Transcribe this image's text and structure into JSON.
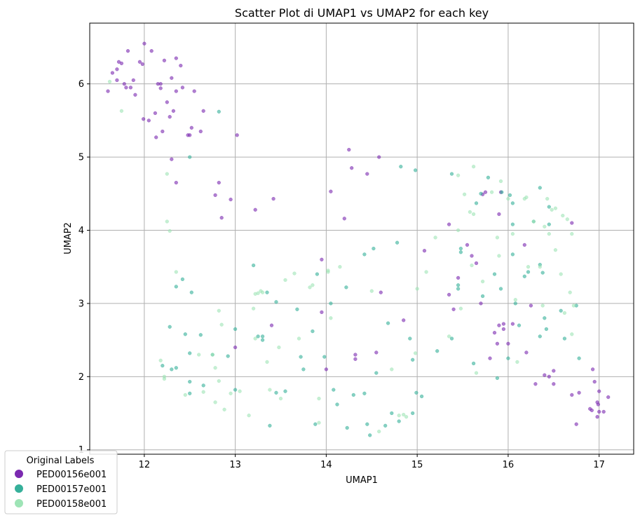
{
  "chart_data": {
    "type": "scatter",
    "title": "Scatter Plot di UMAP1 vs UMAP2 for each key",
    "xlabel": "UMAP1",
    "ylabel": "UMAP2",
    "xlim": [
      11.4,
      17.38
    ],
    "ylim": [
      0.94,
      6.83
    ],
    "xticks": [
      12,
      13,
      14,
      15,
      16,
      17
    ],
    "yticks": [
      1,
      2,
      3,
      4,
      5,
      6
    ],
    "grid": true,
    "legend": {
      "title": "Original Labels",
      "placement": "lower-left"
    },
    "series": [
      {
        "name": "PED00156e001",
        "color": "#7b2ab0",
        "points": [
          [
            11.6,
            5.9
          ],
          [
            11.65,
            6.15
          ],
          [
            11.7,
            6.2
          ],
          [
            11.72,
            6.3
          ],
          [
            11.75,
            6.28
          ],
          [
            11.7,
            6.05
          ],
          [
            11.78,
            6.0
          ],
          [
            11.8,
            5.95
          ],
          [
            11.85,
            5.95
          ],
          [
            11.82,
            6.45
          ],
          [
            11.88,
            6.05
          ],
          [
            11.9,
            5.85
          ],
          [
            11.95,
            6.3
          ],
          [
            11.98,
            6.27
          ],
          [
            11.99,
            5.52
          ],
          [
            12.0,
            6.55
          ],
          [
            12.05,
            5.5
          ],
          [
            12.08,
            6.45
          ],
          [
            12.12,
            5.6
          ],
          [
            12.15,
            6.0
          ],
          [
            12.18,
            6.0
          ],
          [
            12.2,
            5.35
          ],
          [
            12.22,
            6.32
          ],
          [
            12.25,
            5.75
          ],
          [
            12.28,
            5.55
          ],
          [
            12.3,
            6.08
          ],
          [
            12.32,
            5.63
          ],
          [
            12.35,
            6.35
          ],
          [
            12.35,
            5.9
          ],
          [
            12.4,
            6.25
          ],
          [
            12.42,
            5.95
          ],
          [
            12.48,
            5.3
          ],
          [
            12.5,
            5.3
          ],
          [
            12.52,
            5.4
          ],
          [
            12.55,
            5.9
          ],
          [
            12.62,
            5.35
          ],
          [
            12.65,
            5.63
          ],
          [
            12.13,
            5.27
          ],
          [
            12.18,
            5.94
          ],
          [
            12.3,
            4.97
          ],
          [
            12.35,
            4.65
          ],
          [
            12.78,
            4.48
          ],
          [
            12.82,
            4.65
          ],
          [
            12.85,
            4.17
          ],
          [
            12.95,
            4.42
          ],
          [
            13.02,
            5.3
          ],
          [
            13.22,
            4.28
          ],
          [
            13.42,
            4.43
          ],
          [
            14.05,
            4.53
          ],
          [
            14.2,
            4.16
          ],
          [
            14.25,
            5.1
          ],
          [
            14.28,
            4.85
          ],
          [
            14.45,
            4.77
          ],
          [
            14.58,
            5.0
          ],
          [
            13.95,
            3.6
          ],
          [
            14.55,
            2.33
          ],
          [
            14.6,
            3.15
          ],
          [
            14.85,
            2.77
          ],
          [
            14.32,
            2.3
          ],
          [
            14.32,
            2.24
          ],
          [
            13.95,
            2.88
          ],
          [
            13.4,
            2.7
          ],
          [
            13.0,
            2.4
          ],
          [
            14.0,
            2.1
          ],
          [
            15.08,
            3.72
          ],
          [
            15.35,
            4.08
          ],
          [
            15.35,
            3.12
          ],
          [
            15.4,
            2.92
          ],
          [
            15.45,
            3.35
          ],
          [
            15.55,
            3.8
          ],
          [
            15.6,
            3.65
          ],
          [
            15.65,
            3.55
          ],
          [
            15.7,
            3.0
          ],
          [
            15.72,
            4.49
          ],
          [
            15.75,
            4.52
          ],
          [
            15.8,
            2.25
          ],
          [
            15.85,
            2.6
          ],
          [
            15.88,
            2.45
          ],
          [
            15.9,
            4.22
          ],
          [
            15.9,
            2.7
          ],
          [
            15.92,
            4.52
          ],
          [
            15.95,
            2.72
          ],
          [
            15.95,
            2.65
          ],
          [
            16.0,
            2.45
          ],
          [
            16.05,
            2.72
          ],
          [
            16.18,
            3.8
          ],
          [
            16.2,
            2.33
          ],
          [
            16.25,
            2.97
          ],
          [
            16.3,
            1.9
          ],
          [
            16.4,
            2.02
          ],
          [
            16.45,
            2.0
          ],
          [
            16.5,
            2.08
          ],
          [
            16.5,
            1.9
          ],
          [
            16.7,
            1.75
          ],
          [
            16.75,
            1.35
          ],
          [
            16.78,
            1.78
          ],
          [
            16.9,
            1.56
          ],
          [
            16.92,
            1.54
          ],
          [
            16.93,
            2.1
          ],
          [
            16.95,
            1.93
          ],
          [
            16.98,
            1.45
          ],
          [
            16.98,
            1.65
          ],
          [
            16.99,
            1.62
          ],
          [
            17.0,
            1.52
          ],
          [
            17.0,
            1.8
          ],
          [
            17.05,
            1.52
          ],
          [
            17.1,
            1.72
          ],
          [
            16.7,
            4.1
          ]
        ]
      },
      {
        "name": "PED00157e001",
        "color": "#36b09a",
        "points": [
          [
            12.5,
            5.0
          ],
          [
            12.82,
            5.62
          ],
          [
            12.28,
            2.68
          ],
          [
            12.35,
            3.23
          ],
          [
            12.42,
            3.33
          ],
          [
            12.52,
            3.15
          ],
          [
            12.2,
            2.15
          ],
          [
            12.3,
            2.1
          ],
          [
            12.35,
            2.12
          ],
          [
            12.45,
            2.58
          ],
          [
            12.5,
            2.32
          ],
          [
            12.5,
            1.93
          ],
          [
            12.62,
            2.57
          ],
          [
            12.65,
            1.88
          ],
          [
            12.5,
            1.77
          ],
          [
            12.75,
            2.3
          ],
          [
            12.92,
            2.28
          ],
          [
            13.0,
            2.65
          ],
          [
            13.0,
            1.82
          ],
          [
            13.2,
            3.52
          ],
          [
            13.25,
            2.55
          ],
          [
            13.3,
            2.55
          ],
          [
            13.3,
            2.5
          ],
          [
            13.35,
            3.15
          ],
          [
            13.45,
            3.02
          ],
          [
            13.45,
            1.78
          ],
          [
            13.55,
            1.8
          ],
          [
            13.38,
            1.33
          ],
          [
            13.68,
            2.92
          ],
          [
            13.72,
            2.27
          ],
          [
            13.75,
            2.1
          ],
          [
            13.85,
            2.62
          ],
          [
            13.88,
            1.35
          ],
          [
            13.9,
            3.4
          ],
          [
            13.98,
            2.27
          ],
          [
            14.05,
            3.0
          ],
          [
            14.08,
            1.82
          ],
          [
            14.12,
            1.62
          ],
          [
            14.22,
            3.22
          ],
          [
            14.23,
            1.3
          ],
          [
            14.3,
            1.75
          ],
          [
            14.42,
            1.77
          ],
          [
            14.42,
            3.67
          ],
          [
            14.45,
            1.35
          ],
          [
            14.48,
            1.2
          ],
          [
            14.52,
            3.75
          ],
          [
            14.55,
            2.05
          ],
          [
            14.65,
            1.33
          ],
          [
            14.68,
            2.73
          ],
          [
            14.72,
            1.5
          ],
          [
            14.78,
            3.83
          ],
          [
            14.8,
            1.39
          ],
          [
            14.82,
            4.87
          ],
          [
            14.92,
            2.52
          ],
          [
            14.95,
            2.23
          ],
          [
            14.95,
            1.5
          ],
          [
            14.98,
            4.82
          ],
          [
            14.99,
            1.78
          ],
          [
            15.05,
            1.73
          ],
          [
            15.22,
            2.35
          ],
          [
            15.38,
            4.77
          ],
          [
            15.38,
            2.52
          ],
          [
            15.45,
            3.2
          ],
          [
            15.48,
            3.75
          ],
          [
            15.48,
            3.7
          ],
          [
            15.62,
            2.18
          ],
          [
            15.65,
            4.37
          ],
          [
            15.7,
            4.5
          ],
          [
            15.72,
            3.1
          ],
          [
            15.78,
            4.72
          ],
          [
            15.85,
            3.4
          ],
          [
            15.88,
            1.98
          ],
          [
            15.92,
            3.2
          ],
          [
            15.93,
            4.52
          ],
          [
            16.0,
            2.25
          ],
          [
            16.02,
            4.48
          ],
          [
            16.05,
            4.08
          ],
          [
            16.05,
            3.67
          ],
          [
            16.05,
            4.37
          ],
          [
            16.08,
            3.0
          ],
          [
            16.12,
            2.7
          ],
          [
            16.18,
            3.37
          ],
          [
            16.22,
            3.43
          ],
          [
            16.28,
            4.12
          ],
          [
            16.35,
            4.58
          ],
          [
            16.35,
            3.53
          ],
          [
            16.35,
            2.55
          ],
          [
            16.38,
            3.42
          ],
          [
            16.4,
            2.8
          ],
          [
            16.42,
            2.65
          ],
          [
            16.45,
            4.32
          ],
          [
            16.45,
            4.08
          ],
          [
            16.58,
            2.9
          ],
          [
            16.62,
            2.52
          ],
          [
            16.75,
            2.97
          ],
          [
            16.78,
            2.25
          ],
          [
            15.45,
            3.25
          ]
        ]
      },
      {
        "name": "PED00158e001",
        "color": "#9ee4b6",
        "points": [
          [
            11.62,
            6.03
          ],
          [
            11.75,
            5.63
          ],
          [
            12.18,
            2.22
          ],
          [
            12.22,
            2.0
          ],
          [
            12.22,
            1.97
          ],
          [
            12.25,
            4.77
          ],
          [
            12.25,
            4.12
          ],
          [
            12.28,
            3.99
          ],
          [
            12.35,
            3.43
          ],
          [
            12.45,
            1.75
          ],
          [
            12.6,
            2.3
          ],
          [
            12.65,
            1.79
          ],
          [
            12.75,
            2.3
          ],
          [
            12.78,
            2.12
          ],
          [
            12.78,
            1.65
          ],
          [
            12.82,
            1.94
          ],
          [
            12.82,
            2.9
          ],
          [
            12.85,
            2.71
          ],
          [
            12.88,
            1.55
          ],
          [
            12.95,
            1.77
          ],
          [
            13.05,
            1.8
          ],
          [
            13.15,
            1.47
          ],
          [
            13.2,
            2.93
          ],
          [
            13.22,
            3.13
          ],
          [
            13.22,
            2.52
          ],
          [
            13.25,
            3.14
          ],
          [
            13.28,
            3.17
          ],
          [
            13.3,
            3.15
          ],
          [
            13.35,
            2.2
          ],
          [
            13.38,
            1.82
          ],
          [
            13.48,
            2.4
          ],
          [
            13.5,
            1.7
          ],
          [
            13.55,
            3.32
          ],
          [
            13.65,
            3.41
          ],
          [
            13.7,
            2.52
          ],
          [
            13.82,
            3.22
          ],
          [
            13.85,
            3.25
          ],
          [
            13.92,
            1.7
          ],
          [
            13.92,
            1.37
          ],
          [
            14.02,
            3.43
          ],
          [
            14.05,
            2.8
          ],
          [
            14.15,
            3.5
          ],
          [
            14.5,
            3.17
          ],
          [
            14.72,
            2.1
          ],
          [
            14.8,
            1.47
          ],
          [
            14.85,
            1.48
          ],
          [
            14.88,
            1.45
          ],
          [
            14.98,
            2.32
          ],
          [
            15.0,
            3.2
          ],
          [
            15.1,
            3.43
          ],
          [
            15.2,
            3.9
          ],
          [
            15.35,
            2.55
          ],
          [
            15.45,
            4.75
          ],
          [
            15.45,
            4.0
          ],
          [
            15.48,
            2.93
          ],
          [
            15.52,
            4.49
          ],
          [
            15.58,
            4.25
          ],
          [
            15.6,
            3.52
          ],
          [
            15.62,
            4.87
          ],
          [
            15.62,
            4.22
          ],
          [
            15.65,
            2.05
          ],
          [
            15.72,
            3.3
          ],
          [
            15.82,
            4.52
          ],
          [
            15.88,
            3.9
          ],
          [
            15.9,
            3.65
          ],
          [
            15.92,
            4.67
          ],
          [
            16.0,
            4.43
          ],
          [
            16.05,
            3.95
          ],
          [
            16.08,
            3.05
          ],
          [
            16.1,
            2.2
          ],
          [
            16.18,
            4.43
          ],
          [
            16.2,
            4.45
          ],
          [
            16.22,
            3.5
          ],
          [
            16.28,
            4.12
          ],
          [
            16.35,
            3.5
          ],
          [
            16.38,
            2.97
          ],
          [
            16.4,
            4.05
          ],
          [
            16.43,
            4.43
          ],
          [
            16.45,
            3.95
          ],
          [
            16.48,
            4.28
          ],
          [
            16.52,
            4.3
          ],
          [
            16.52,
            3.73
          ],
          [
            16.58,
            3.4
          ],
          [
            16.6,
            4.2
          ],
          [
            16.62,
            2.87
          ],
          [
            16.65,
            4.15
          ],
          [
            16.68,
            3.15
          ],
          [
            16.7,
            3.95
          ],
          [
            16.7,
            2.58
          ],
          [
            16.72,
            2.97
          ],
          [
            14.58,
            1.25
          ],
          [
            14.02,
            3.45
          ]
        ]
      }
    ]
  }
}
